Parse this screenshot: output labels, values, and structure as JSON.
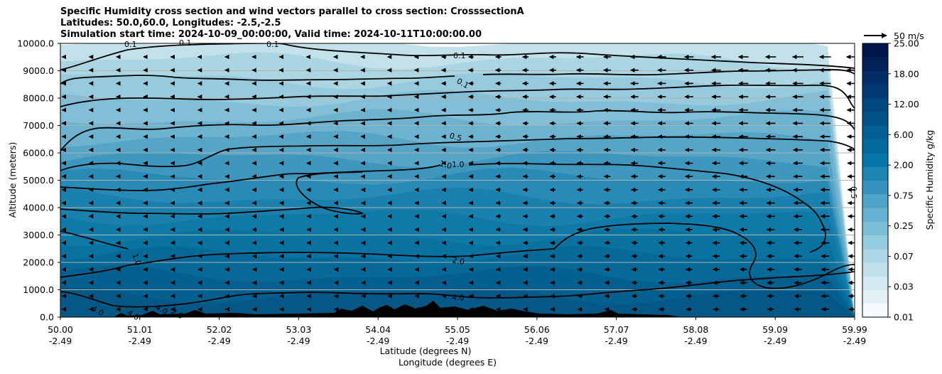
{
  "chart_data": {
    "type": "heatmap",
    "title_lines": [
      "Specific Humidity cross section and wind vectors parallel to cross section: CrosssectionA",
      "Latitudes: 50.0,60.0, Longitudes: -2.5,-2.5",
      "Simulation start time: 2024-10-09_00:00:00, Valid time: 2024-10-11T10:00:00.00"
    ],
    "ylabel": "Altitude (meters)",
    "xlabel_lat": "Latitude (degrees N)",
    "xlabel_lon": "Longitude (degrees E)",
    "ylim": [
      0,
      10000
    ],
    "yticks": [
      "0.0",
      "1000.0",
      "2000.0",
      "3000.0",
      "4000.0",
      "5000.0",
      "6000.0",
      "7000.0",
      "8000.0",
      "9000.0",
      "10000.0"
    ],
    "xlim": [
      50.0,
      59.99
    ],
    "xticks": [
      {
        "lat": "50.00",
        "lon": "-2.49"
      },
      {
        "lat": "51.01",
        "lon": "-2.49"
      },
      {
        "lat": "52.02",
        "lon": "-2.49"
      },
      {
        "lat": "53.03",
        "lon": "-2.49"
      },
      {
        "lat": "54.04",
        "lon": "-2.49"
      },
      {
        "lat": "55.05",
        "lon": "-2.49"
      },
      {
        "lat": "56.06",
        "lon": "-2.49"
      },
      {
        "lat": "57.07",
        "lon": "-2.49"
      },
      {
        "lat": "58.08",
        "lon": "-2.49"
      },
      {
        "lat": "59.09",
        "lon": "-2.49"
      },
      {
        "lat": "59.99",
        "lon": "-2.49"
      }
    ],
    "colorbar": {
      "label": "Specific Humidity g/kg",
      "levels": [
        "0.01",
        "0.03",
        "0.07",
        "0.25",
        "0.75",
        "2.00",
        "6.00",
        "12.00",
        "18.00",
        "25.00"
      ],
      "colors": [
        "#f7fbff",
        "#e4f1f6",
        "#d2e9f1",
        "#c0e0eb",
        "#acd6e5",
        "#95cbde",
        "#7ebfd8",
        "#66b1d1",
        "#4ea3c8",
        "#3594be",
        "#1c85b3",
        "#0876a8",
        "#046a9e",
        "#035f94",
        "#03538a",
        "#034780",
        "#033a74",
        "#032d66",
        "#032159",
        "#02164d"
      ]
    },
    "quiver_key": "50 m/s",
    "contour_labels": [
      "0.1",
      "0.1",
      "0.1",
      "0.1",
      "0.1",
      "0.5",
      "1.0",
      "1.0",
      "1.0",
      "2.0",
      "4.0",
      "4.0",
      "4.0",
      "4.0",
      "2.0",
      "0.5"
    ],
    "legend": "none",
    "grid": "horizontal"
  }
}
